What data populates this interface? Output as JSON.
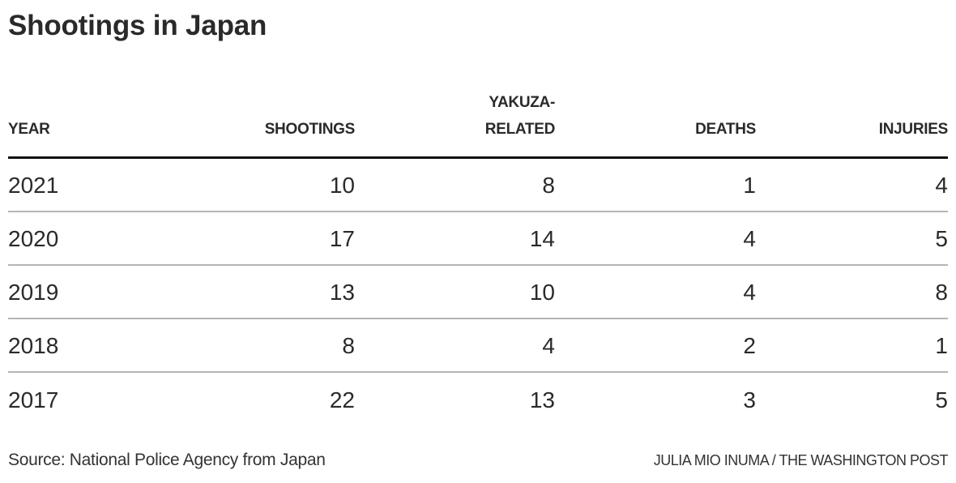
{
  "title": "Shootings in Japan",
  "table": {
    "headers": [
      {
        "lines": [
          "YEAR"
        ],
        "align": "left"
      },
      {
        "lines": [
          "SHOOTINGS"
        ],
        "align": "right"
      },
      {
        "lines": [
          "YAKUZA-",
          "RELATED"
        ],
        "align": "right"
      },
      {
        "lines": [
          "DEATHS"
        ],
        "align": "right"
      },
      {
        "lines": [
          "INJURIES"
        ],
        "align": "right"
      }
    ],
    "rows": [
      {
        "year": "2021",
        "shootings": "10",
        "yakuza_related": "8",
        "deaths": "1",
        "injuries": "4"
      },
      {
        "year": "2020",
        "shootings": "17",
        "yakuza_related": "14",
        "deaths": "4",
        "injuries": "5"
      },
      {
        "year": "2019",
        "shootings": "13",
        "yakuza_related": "10",
        "deaths": "4",
        "injuries": "8"
      },
      {
        "year": "2018",
        "shootings": "8",
        "yakuza_related": "4",
        "deaths": "2",
        "injuries": "1"
      },
      {
        "year": "2017",
        "shootings": "22",
        "yakuza_related": "13",
        "deaths": "3",
        "injuries": "5"
      }
    ]
  },
  "footer": {
    "source": "Source: National Police Agency from Japan",
    "credit": "JULIA MIO INUMA / THE WASHINGTON POST"
  },
  "colors": {
    "text": "#2a2a2a",
    "header_rule": "#111111",
    "row_rule": "#b5b5b5",
    "background": "#ffffff"
  },
  "chart_data": {
    "type": "table",
    "title": "Shootings in Japan",
    "columns": [
      "YEAR",
      "SHOOTINGS",
      "YAKUZA-RELATED",
      "DEATHS",
      "INJURIES"
    ],
    "categories": [
      "2021",
      "2020",
      "2019",
      "2018",
      "2017"
    ],
    "series": [
      {
        "name": "SHOOTINGS",
        "values": [
          10,
          17,
          13,
          8,
          22
        ]
      },
      {
        "name": "YAKUZA-RELATED",
        "values": [
          8,
          14,
          10,
          4,
          13
        ]
      },
      {
        "name": "DEATHS",
        "values": [
          1,
          4,
          4,
          2,
          3
        ]
      },
      {
        "name": "INJURIES",
        "values": [
          4,
          5,
          8,
          1,
          5
        ]
      }
    ],
    "source": "Source: National Police Agency from Japan",
    "credit": "JULIA MIO INUMA / THE WASHINGTON POST"
  }
}
